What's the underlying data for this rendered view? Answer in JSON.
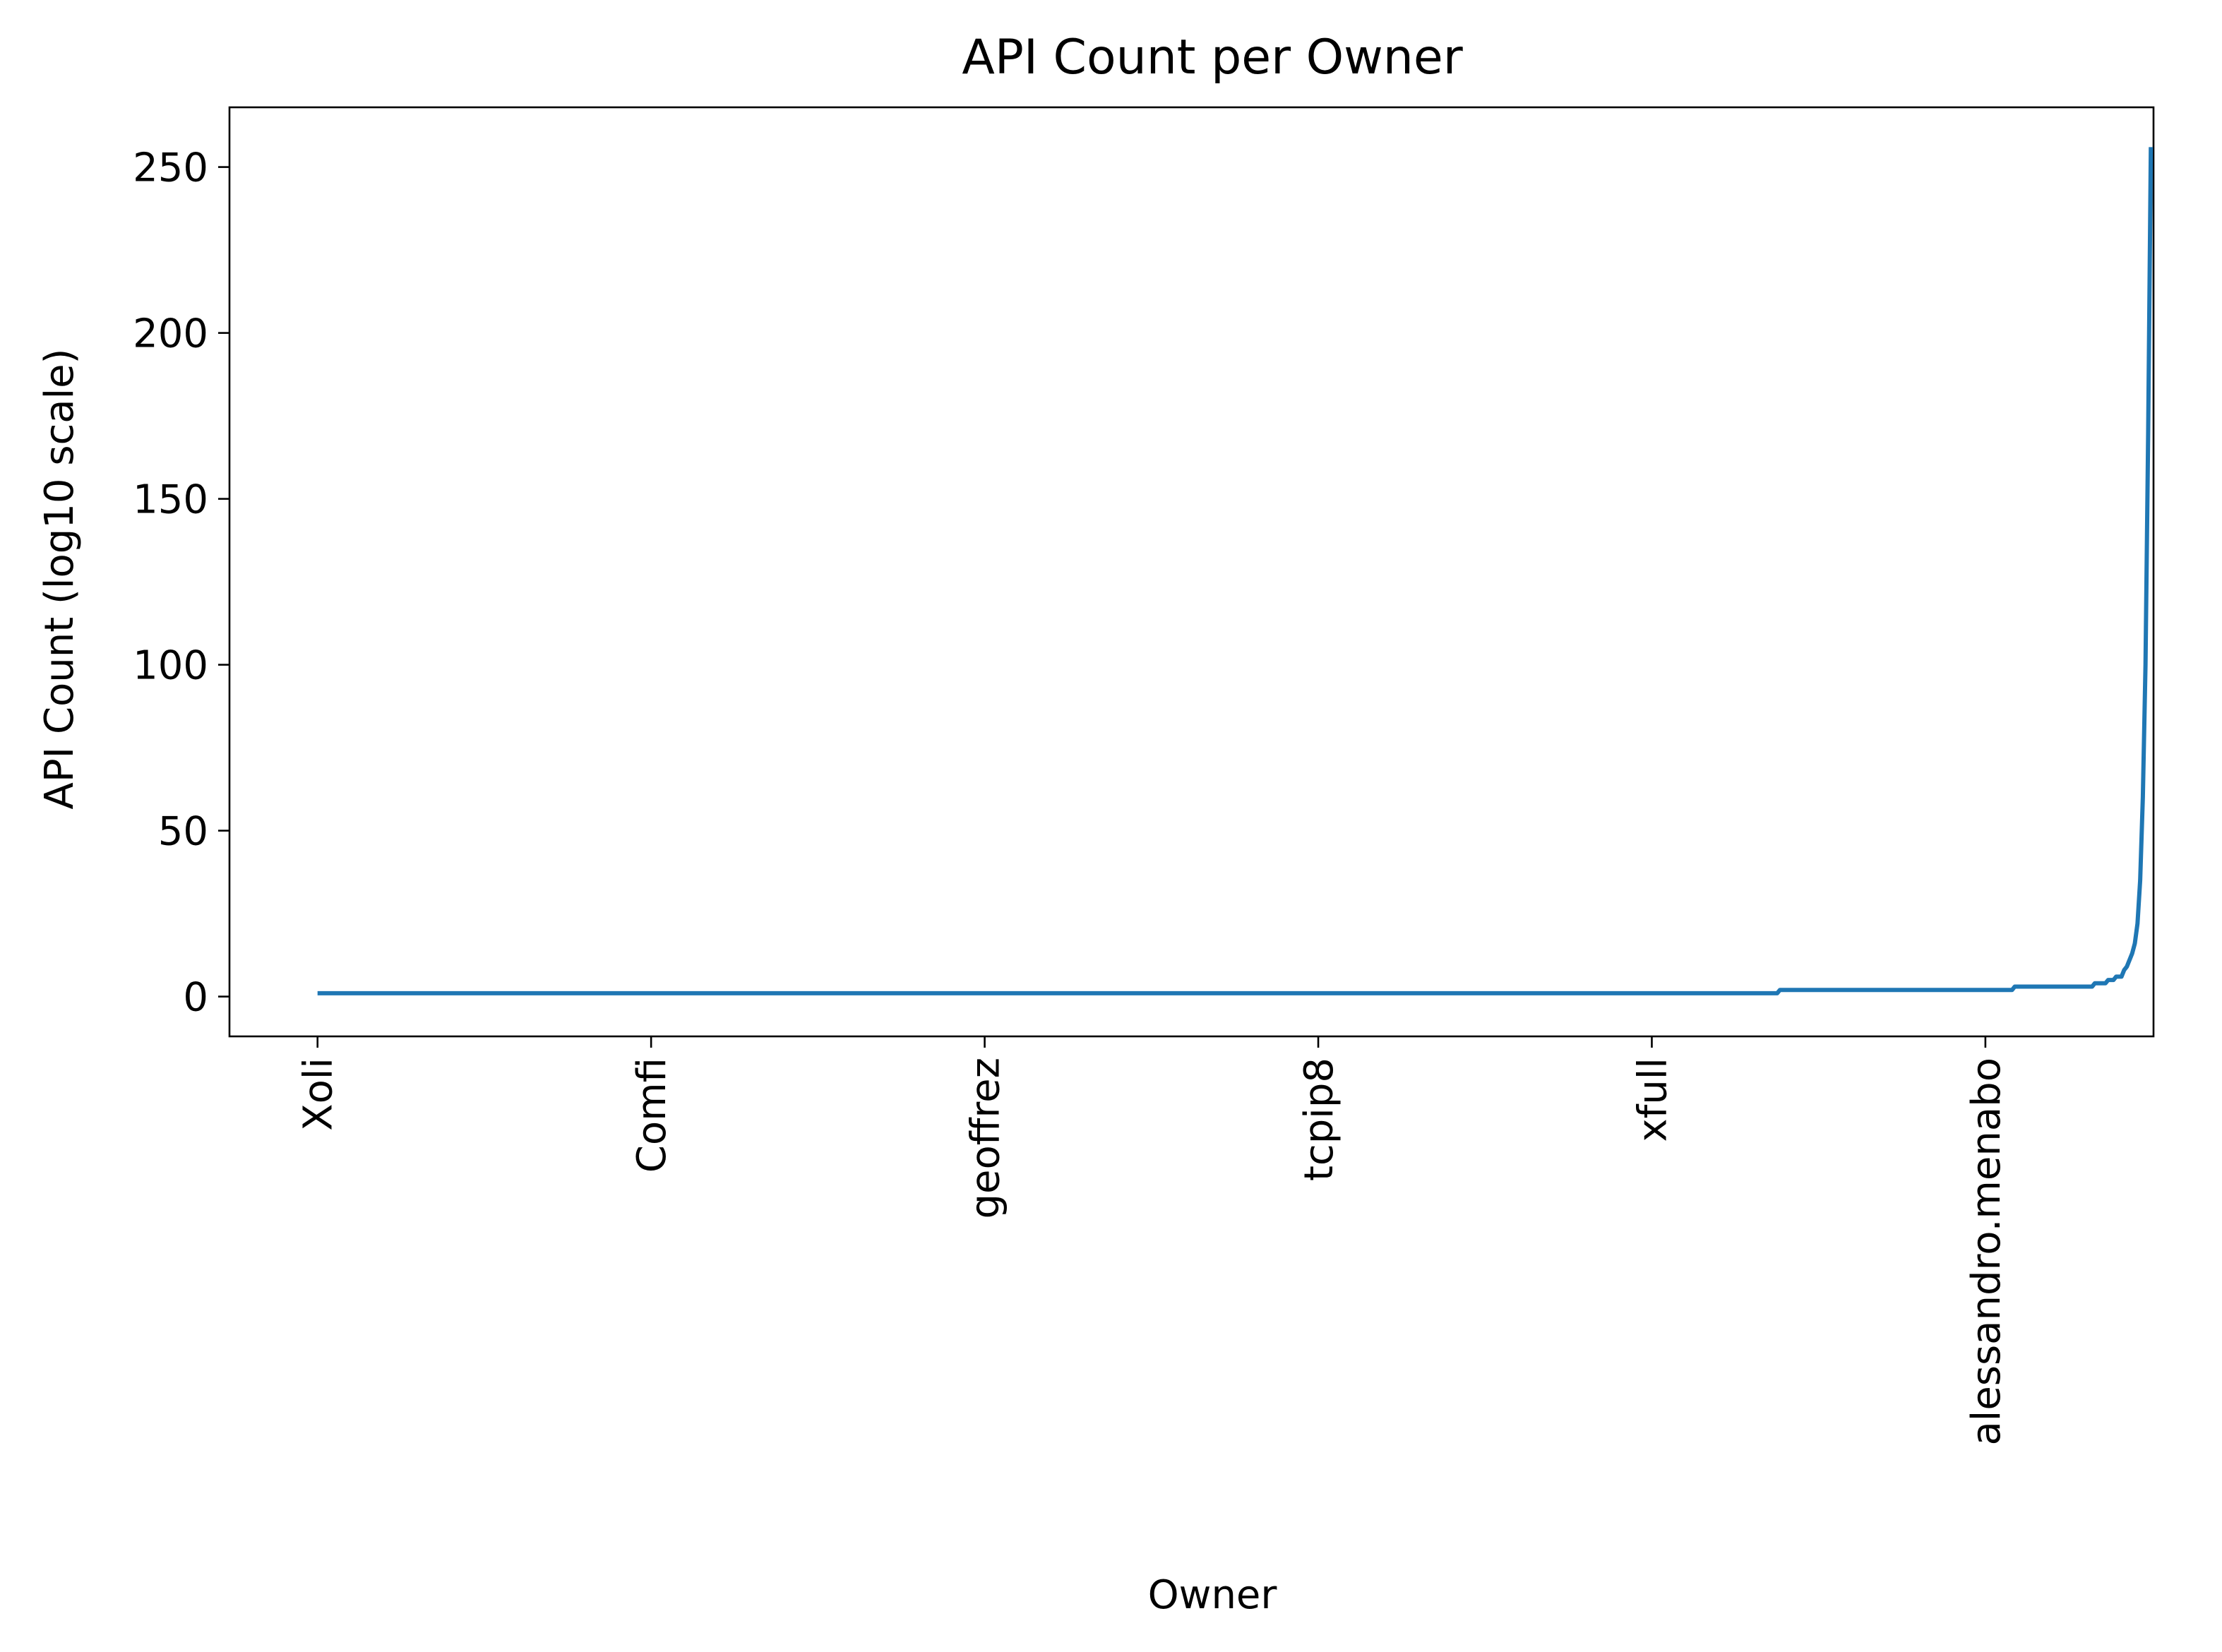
{
  "chart_data": {
    "type": "line",
    "title": "API Count per Owner",
    "xlabel": "Owner",
    "ylabel": "API Count (log10 scale)",
    "ylim": [
      -12,
      268
    ],
    "xlim": [
      -33,
      688
    ],
    "yticks": [
      0,
      50,
      100,
      150,
      200,
      250
    ],
    "xticks": [
      {
        "x": 0,
        "label": "Xoli"
      },
      {
        "x": 125,
        "label": "Comfi"
      },
      {
        "x": 250,
        "label": "geoffrez"
      },
      {
        "x": 375,
        "label": "tcpip8"
      },
      {
        "x": 500,
        "label": "xfull"
      },
      {
        "x": 625,
        "label": "alessandro.menabo"
      }
    ],
    "grid": false,
    "legend": "none",
    "series_color": "#1f77b4",
    "series": [
      {
        "x": [
          0,
          547,
          548,
          635,
          636,
          665,
          666,
          670,
          671,
          673,
          674,
          676,
          677,
          678,
          679,
          680,
          681,
          682,
          683,
          684,
          685,
          686,
          687
        ],
        "values": [
          1,
          1,
          2,
          2,
          3,
          3,
          4,
          4,
          5,
          5,
          6,
          6,
          8,
          9,
          11,
          13,
          16,
          22,
          35,
          60,
          100,
          170,
          256
        ]
      }
    ]
  }
}
